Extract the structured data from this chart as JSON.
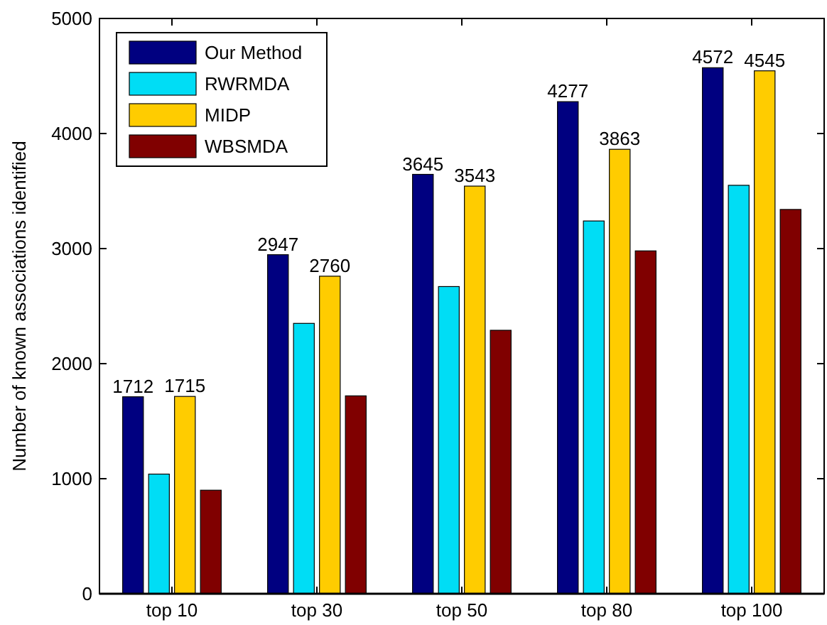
{
  "chart_data": {
    "type": "bar",
    "ylabel": "Number of known associations identified",
    "categories": [
      "top 10",
      "top 30",
      "top 50",
      "top 80",
      "top 100"
    ],
    "ylim": [
      0,
      5000
    ],
    "yticks": [
      0,
      1000,
      2000,
      3000,
      4000,
      5000
    ],
    "grid": false,
    "legend": "top left",
    "series": [
      {
        "name": "Our Method",
        "color": "#000080",
        "values": [
          1712,
          2947,
          3645,
          4277,
          4572
        ],
        "value_labels": [
          "1712",
          "2947",
          "3645",
          "4277",
          "4572"
        ]
      },
      {
        "name": "RWRMDA",
        "color": "#00ddf5",
        "values": [
          1040,
          2350,
          2670,
          3240,
          3550
        ]
      },
      {
        "name": "MIDP",
        "color": "#ffcc00",
        "values": [
          1715,
          2760,
          3543,
          3863,
          4545
        ],
        "value_labels": [
          "1715",
          "2760",
          "3543",
          "3863",
          "4545"
        ]
      },
      {
        "name": "WBSMDA",
        "color": "#800000",
        "values": [
          900,
          1720,
          2290,
          2980,
          3340
        ]
      }
    ]
  }
}
